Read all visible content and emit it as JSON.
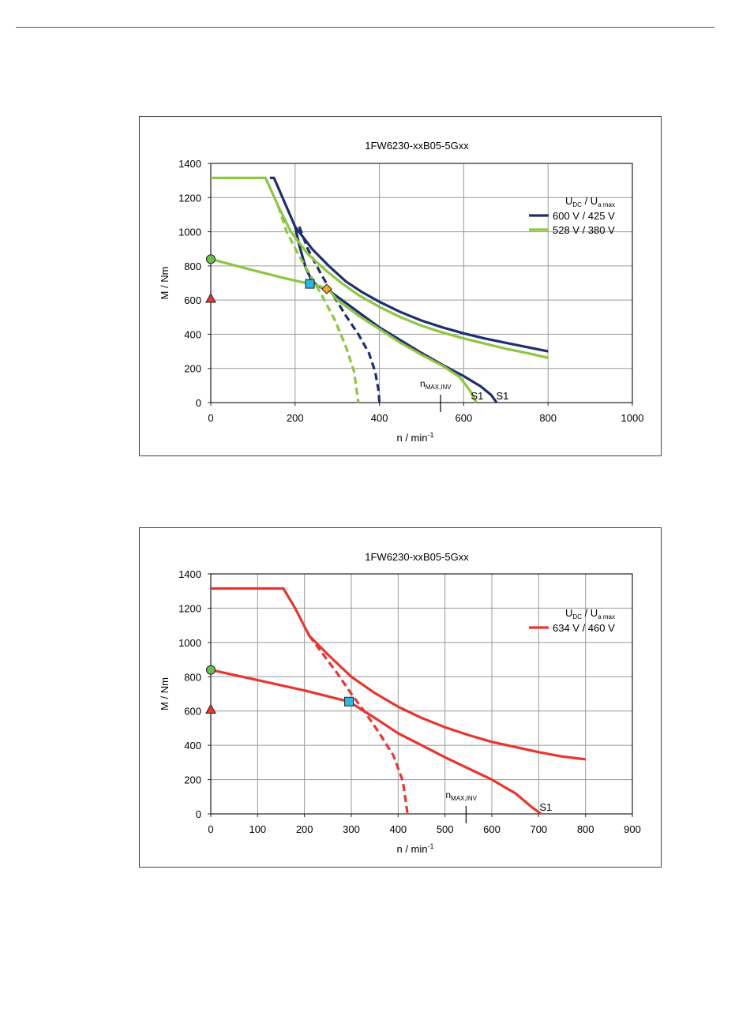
{
  "chart_data": [
    {
      "type": "line",
      "title": "1FW6230-xxB05-5Gxx",
      "xlabel": "n / min",
      "xlabel_sup": "-1",
      "ylabel": "M / Nm",
      "xlim": [
        0,
        1000
      ],
      "ylim": [
        0,
        1400
      ],
      "x_ticks": [
        0,
        200,
        400,
        600,
        800,
        1000
      ],
      "y_ticks": [
        0,
        200,
        400,
        600,
        800,
        1000,
        1200,
        1400
      ],
      "grid": true,
      "legend_position": "right",
      "legend_header": {
        "u": "U",
        "dc": "DC",
        "sep": " / ",
        "u2": "U",
        "amax": "a max"
      },
      "series": [
        {
          "name": "600 V / 425 V",
          "color": "#1f2f6e",
          "curves": [
            {
              "style": "solid",
              "points": [
                [
                  140,
                  1315
                ],
                [
                  150,
                  1315
                ],
                [
                  200,
                  1030
                ],
                [
                  240,
                  900
                ],
                [
                  280,
                  800
                ],
                [
                  320,
                  710
                ],
                [
                  360,
                  645
                ],
                [
                  400,
                  590
                ],
                [
                  450,
                  530
                ],
                [
                  500,
                  480
                ],
                [
                  550,
                  440
                ],
                [
                  600,
                  405
                ],
                [
                  650,
                  375
                ],
                [
                  700,
                  350
                ],
                [
                  750,
                  325
                ],
                [
                  800,
                  300
                ]
              ]
            },
            {
              "style": "solid",
              "points": [
                [
                  200,
                  1030
                ],
                [
                  210,
                  920
                ],
                [
                  225,
                  790
                ],
                [
                  240,
                  710
                ],
                [
                  255,
                  680
                ],
                [
                  275,
                  665
                ],
                [
                  300,
                  620
                ],
                [
                  350,
                  530
                ],
                [
                  400,
                  440
                ],
                [
                  450,
                  365
                ],
                [
                  500,
                  290
                ],
                [
                  550,
                  220
                ],
                [
                  600,
                  155
                ],
                [
                  640,
                  95
                ],
                [
                  665,
                  45
                ],
                [
                  678,
                  0
                ]
              ]
            },
            {
              "style": "dashed",
              "points": [
                [
                  210,
                  1030
                ],
                [
                  230,
                  900
                ],
                [
                  260,
                  760
                ],
                [
                  290,
                  630
                ],
                [
                  320,
                  510
                ],
                [
                  350,
                  400
                ],
                [
                  375,
                  290
                ],
                [
                  390,
                  180
                ],
                [
                  398,
                  70
                ],
                [
                  400,
                  0
                ]
              ]
            }
          ]
        },
        {
          "name": "528 V / 380 V",
          "color": "#8dc63f",
          "curves": [
            {
              "style": "solid",
              "points": [
                [
                  0,
                  1315
                ],
                [
                  130,
                  1315
                ],
                [
                  160,
                  1150
                ],
                [
                  190,
                  1000
                ],
                [
                  230,
                  870
                ],
                [
                  270,
                  780
                ],
                [
                  310,
                  700
                ],
                [
                  350,
                  630
                ],
                [
                  400,
                  560
                ],
                [
                  450,
                  500
                ],
                [
                  500,
                  450
                ],
                [
                  550,
                  410
                ],
                [
                  600,
                  375
                ],
                [
                  650,
                  345
                ],
                [
                  700,
                  315
                ],
                [
                  750,
                  290
                ],
                [
                  800,
                  262
                ]
              ]
            },
            {
              "style": "solid",
              "points": [
                [
                  0,
                  840
                ],
                [
                  100,
                  775
                ],
                [
                  180,
                  725
                ],
                [
                  235,
                  695
                ],
                [
                  260,
                  680
                ],
                [
                  280,
                  660
                ],
                [
                  300,
                  600
                ],
                [
                  350,
                  510
                ],
                [
                  400,
                  430
                ],
                [
                  450,
                  350
                ],
                [
                  500,
                  280
                ],
                [
                  550,
                  215
                ],
                [
                  590,
                  150
                ],
                [
                  615,
                  70
                ],
                [
                  630,
                  0
                ]
              ]
            },
            {
              "style": "dashed",
              "points": [
                [
                  160,
                  1150
                ],
                [
                  180,
                  1000
                ],
                [
                  205,
                  880
                ],
                [
                  235,
                  750
                ],
                [
                  265,
                  620
                ],
                [
                  295,
                  480
                ],
                [
                  320,
                  330
                ],
                [
                  340,
                  180
                ],
                [
                  350,
                  0
                ]
              ]
            }
          ]
        }
      ],
      "markers": [
        {
          "shape": "circle",
          "x": 0,
          "y": 840,
          "color": "#6abf4b"
        },
        {
          "shape": "triangle",
          "x": 0,
          "y": 610,
          "color": "#e8362d"
        },
        {
          "shape": "square",
          "x": 235,
          "y": 695,
          "color": "#29b6e8"
        },
        {
          "shape": "diamond",
          "x": 275,
          "y": 665,
          "color": "#f5a623"
        }
      ],
      "annotations": [
        {
          "text": "S1",
          "x": 615,
          "y": 0
        },
        {
          "text": "S1",
          "x": 675,
          "y": 0
        }
      ],
      "nmax_inv": {
        "x": 545,
        "label_n": "n",
        "label_sub": "MAX,INV"
      }
    },
    {
      "type": "line",
      "title": "1FW6230-xxB05-5Gxx",
      "xlabel": "n / min",
      "xlabel_sup": "-1",
      "ylabel": "M / Nm",
      "xlim": [
        0,
        900
      ],
      "ylim": [
        0,
        1400
      ],
      "x_ticks": [
        0,
        100,
        200,
        300,
        400,
        500,
        600,
        700,
        800,
        900
      ],
      "y_ticks": [
        0,
        200,
        400,
        600,
        800,
        1000,
        1200,
        1400
      ],
      "grid": true,
      "legend_position": "right",
      "legend_header": {
        "u": "U",
        "dc": "DC",
        "sep": " / ",
        "u2": "U",
        "amax": "a max"
      },
      "series": [
        {
          "name": "634 V / 460 V",
          "color": "#e8362d",
          "curves": [
            {
              "style": "solid",
              "points": [
                [
                  0,
                  1315
                ],
                [
                  155,
                  1315
                ],
                [
                  180,
                  1200
                ],
                [
                  210,
                  1040
                ],
                [
                  250,
                  930
                ],
                [
                  300,
                  800
                ],
                [
                  350,
                  705
                ],
                [
                  400,
                  625
                ],
                [
                  450,
                  560
                ],
                [
                  500,
                  505
                ],
                [
                  550,
                  460
                ],
                [
                  600,
                  420
                ],
                [
                  650,
                  390
                ],
                [
                  700,
                  360
                ],
                [
                  750,
                  335
                ],
                [
                  800,
                  318
                ]
              ]
            },
            {
              "style": "solid",
              "points": [
                [
                  0,
                  840
                ],
                [
                  100,
                  780
                ],
                [
                  200,
                  720
                ],
                [
                  295,
                  655
                ],
                [
                  350,
                  560
                ],
                [
                  400,
                  470
                ],
                [
                  450,
                  400
                ],
                [
                  500,
                  330
                ],
                [
                  550,
                  265
                ],
                [
                  600,
                  200
                ],
                [
                  650,
                  120
                ],
                [
                  685,
                  40
                ],
                [
                  705,
                  0
                ]
              ]
            },
            {
              "style": "dashed",
              "points": [
                [
                  210,
                  1040
                ],
                [
                  240,
                  930
                ],
                [
                  270,
                  820
                ],
                [
                  300,
                  700
                ],
                [
                  330,
                  590
                ],
                [
                  360,
                  470
                ],
                [
                  390,
                  340
                ],
                [
                  410,
                  190
                ],
                [
                  420,
                  0
                ]
              ]
            }
          ]
        }
      ],
      "markers": [
        {
          "shape": "circle",
          "x": 0,
          "y": 840,
          "color": "#6abf4b"
        },
        {
          "shape": "triangle",
          "x": 0,
          "y": 610,
          "color": "#e8362d"
        },
        {
          "shape": "square",
          "x": 295,
          "y": 655,
          "color": "#29b6e8"
        }
      ],
      "annotations": [
        {
          "text": "S1",
          "x": 700,
          "y": 0
        }
      ],
      "nmax_inv": {
        "x": 545,
        "label_n": "n",
        "label_sub": "MAX,INV"
      }
    }
  ]
}
